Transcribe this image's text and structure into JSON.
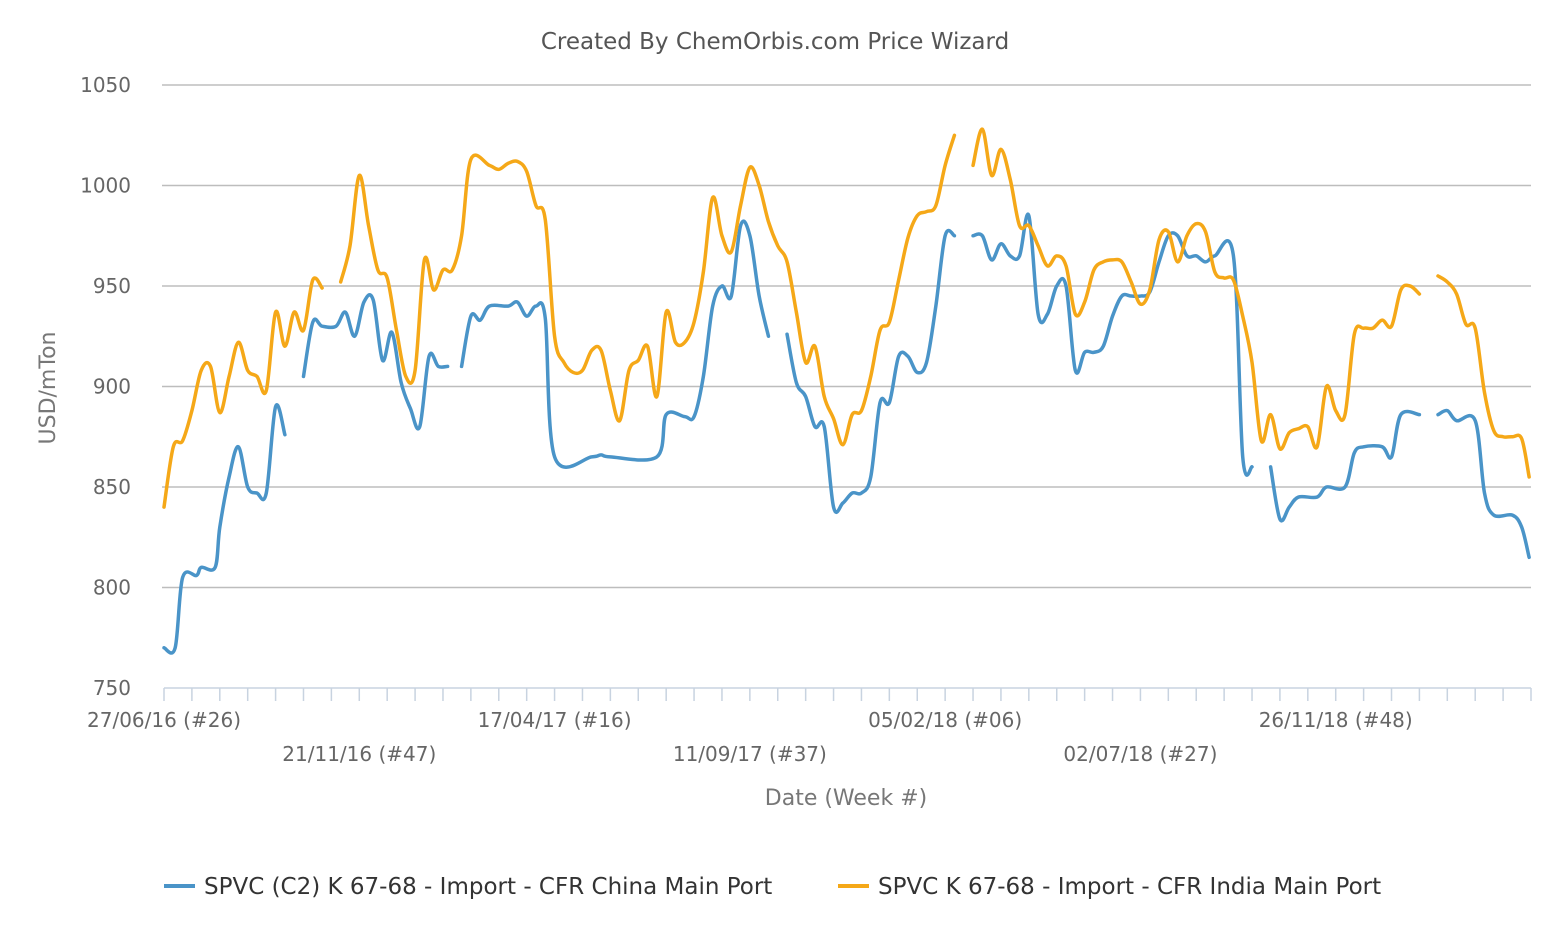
{
  "chart_data": {
    "type": "line",
    "title": "Created By ChemOrbis.com Price Wizard",
    "xlabel": "Date (Week #)",
    "ylabel": "USD/mTon",
    "ylim": [
      750,
      1050
    ],
    "yticks": [
      750,
      800,
      850,
      900,
      950,
      1000,
      1050
    ],
    "x_tick_labels": [
      "27/06/16 (#26)",
      "21/11/16 (#47)",
      "17/04/17 (#16)",
      "11/09/17 (#37)",
      "05/02/18 (#06)",
      "02/07/18 (#27)",
      "26/11/18 (#48)"
    ],
    "x_unit": "weeks since 27/06/16",
    "x_tick_weeks": [
      0,
      21,
      42,
      63,
      84,
      105,
      126
    ],
    "x_range_weeks": [
      0,
      147
    ],
    "grid": true,
    "legend_position": "bottom",
    "series": [
      {
        "name": "SPVC (C2) K 67-68 - Import - CFR China Main Port",
        "color": "#4a94c8",
        "segments": [
          [
            [
              0,
              770
            ],
            [
              1.2,
              770
            ],
            [
              2,
              805
            ],
            [
              3.5,
              806
            ],
            [
              4,
              810
            ],
            [
              5.5,
              810
            ],
            [
              6,
              830
            ],
            [
              7,
              855
            ],
            [
              8,
              870
            ],
            [
              9,
              850
            ],
            [
              10,
              847
            ],
            [
              11,
              847
            ],
            [
              12,
              890
            ],
            [
              13,
              876
            ]
          ],
          [
            [
              15,
              905
            ],
            [
              16,
              932
            ],
            [
              17,
              930
            ],
            [
              18.5,
              930
            ],
            [
              19.5,
              937
            ],
            [
              20.5,
              925
            ],
            [
              21.5,
              942
            ],
            [
              22.5,
              943
            ],
            [
              23.5,
              913
            ],
            [
              24.5,
              927
            ],
            [
              25.5,
              902
            ],
            [
              26.5,
              889
            ],
            [
              27.5,
              880
            ],
            [
              28.5,
              915
            ],
            [
              29.5,
              910
            ],
            [
              30.5,
              910
            ]
          ],
          [
            [
              32,
              910
            ],
            [
              33,
              935
            ],
            [
              34,
              933
            ],
            [
              35,
              940
            ],
            [
              37,
              940
            ],
            [
              38,
              942
            ],
            [
              39,
              935
            ],
            [
              40,
              940
            ],
            [
              41,
              934
            ],
            [
              42,
              865
            ],
            [
              46,
              865
            ],
            [
              47,
              866
            ],
            [
              48,
              865
            ],
            [
              53,
              865
            ],
            [
              54,
              886
            ],
            [
              56,
              885
            ],
            [
              57,
              885
            ],
            [
              58,
              905
            ],
            [
              59,
              940
            ],
            [
              60,
              950
            ],
            [
              61,
              945
            ],
            [
              62,
              980
            ],
            [
              63,
              975
            ],
            [
              64,
              945
            ],
            [
              65,
              925
            ]
          ],
          [
            [
              67,
              926
            ],
            [
              68,
              902
            ],
            [
              69,
              895
            ],
            [
              70,
              880
            ],
            [
              71,
              880
            ],
            [
              72,
              840
            ],
            [
              73,
              842
            ],
            [
              74,
              847
            ],
            [
              75,
              847
            ],
            [
              76,
              855
            ],
            [
              77,
              892
            ],
            [
              78,
              892
            ],
            [
              79,
              915
            ],
            [
              80,
              915
            ],
            [
              81,
              907
            ],
            [
              82,
              912
            ],
            [
              83,
              940
            ],
            [
              84,
              975
            ],
            [
              85,
              975
            ]
          ],
          [
            [
              87,
              975
            ],
            [
              88,
              975
            ],
            [
              89,
              963
            ],
            [
              90,
              971
            ],
            [
              91,
              965
            ],
            [
              92,
              965
            ],
            [
              93,
              985
            ],
            [
              94,
              936
            ],
            [
              95,
              936
            ],
            [
              96,
              950
            ],
            [
              97,
              950
            ],
            [
              98,
              908
            ],
            [
              99,
              917
            ],
            [
              100,
              917
            ],
            [
              101,
              920
            ],
            [
              102,
              935
            ],
            [
              103,
              945
            ],
            [
              104,
              945
            ],
            [
              105,
              945
            ],
            [
              106,
              947
            ],
            [
              107,
              962
            ],
            [
              108,
              975
            ],
            [
              109,
              975
            ],
            [
              110,
              965
            ],
            [
              111,
              965
            ],
            [
              112,
              962
            ],
            [
              113,
              965
            ],
            [
              115,
              965
            ],
            [
              116,
              865
            ],
            [
              117,
              860
            ]
          ],
          [
            [
              119,
              860
            ],
            [
              120,
              834
            ],
            [
              121,
              840
            ],
            [
              122,
              845
            ],
            [
              124,
              845
            ],
            [
              125,
              850
            ],
            [
              127,
              850
            ],
            [
              128,
              867
            ],
            [
              129,
              870
            ],
            [
              131,
              870
            ],
            [
              132,
              865
            ],
            [
              133,
              886
            ],
            [
              135,
              886
            ]
          ],
          [
            [
              137,
              886
            ],
            [
              138,
              888
            ],
            [
              139,
              883
            ],
            [
              141,
              883
            ],
            [
              142,
              847
            ],
            [
              143,
              836
            ],
            [
              145,
              836
            ],
            [
              146,
              830
            ],
            [
              146.8,
              815
            ]
          ]
        ]
      },
      {
        "name": "SPVC K 67-68 - Import - CFR India Main Port",
        "color": "#f5a818",
        "segments": [
          [
            [
              0,
              840
            ],
            [
              1,
              870
            ],
            [
              2,
              873
            ],
            [
              3,
              888
            ],
            [
              4,
              908
            ],
            [
              5,
              910
            ],
            [
              6,
              887
            ],
            [
              7,
              905
            ],
            [
              8,
              922
            ],
            [
              9,
              908
            ],
            [
              10,
              905
            ],
            [
              11,
              898
            ],
            [
              12,
              937
            ],
            [
              13,
              920
            ],
            [
              14,
              937
            ],
            [
              15,
              928
            ],
            [
              16,
              953
            ],
            [
              17,
              949
            ]
          ],
          [
            [
              19,
              952
            ],
            [
              20,
              970
            ],
            [
              21,
              1005
            ],
            [
              22,
              980
            ],
            [
              23,
              958
            ],
            [
              24,
              954
            ],
            [
              25,
              928
            ],
            [
              26,
              905
            ],
            [
              27,
              908
            ],
            [
              28,
              963
            ],
            [
              29,
              948
            ],
            [
              30,
              958
            ],
            [
              31,
              958
            ],
            [
              32,
              975
            ],
            [
              33,
              1013
            ],
            [
              35,
              1010
            ],
            [
              36,
              1008
            ],
            [
              37,
              1011
            ],
            [
              38,
              1012
            ],
            [
              39,
              1007
            ],
            [
              40,
              990
            ],
            [
              41,
              983
            ],
            [
              42,
              925
            ],
            [
              43,
              912
            ],
            [
              44,
              907
            ],
            [
              45,
              908
            ],
            [
              46,
              918
            ],
            [
              47,
              918
            ],
            [
              48,
              898
            ],
            [
              49,
              883
            ],
            [
              50,
              908
            ],
            [
              51,
              913
            ],
            [
              52,
              920
            ],
            [
              53,
              895
            ],
            [
              54,
              937
            ],
            [
              55,
              922
            ],
            [
              56,
              922
            ],
            [
              57,
              932
            ],
            [
              58,
              957
            ],
            [
              59,
              994
            ],
            [
              60,
              975
            ],
            [
              61,
              967
            ],
            [
              62,
              990
            ],
            [
              63,
              1009
            ],
            [
              64,
              1000
            ],
            [
              65,
              982
            ],
            [
              66,
              970
            ],
            [
              67,
              962
            ],
            [
              68,
              937
            ],
            [
              69,
              912
            ],
            [
              70,
              920
            ],
            [
              71,
              895
            ],
            [
              72,
              884
            ],
            [
              73,
              871
            ],
            [
              74,
              886
            ],
            [
              75,
              888
            ],
            [
              76,
              905
            ],
            [
              77,
              928
            ],
            [
              78,
              932
            ],
            [
              79,
              953
            ],
            [
              80,
              974
            ],
            [
              81,
              985
            ],
            [
              82,
              987
            ],
            [
              83,
              990
            ],
            [
              84,
              1010
            ],
            [
              85,
              1025
            ]
          ],
          [
            [
              87,
              1010
            ],
            [
              88,
              1028
            ],
            [
              89,
              1005
            ],
            [
              90,
              1018
            ],
            [
              91,
              1003
            ],
            [
              92,
              980
            ],
            [
              93,
              980
            ],
            [
              94,
              970
            ],
            [
              95,
              960
            ],
            [
              96,
              965
            ],
            [
              97,
              960
            ],
            [
              98,
              936
            ],
            [
              99,
              942
            ],
            [
              100,
              958
            ],
            [
              101,
              962
            ],
            [
              102,
              963
            ],
            [
              103,
              962
            ],
            [
              104,
              952
            ],
            [
              105,
              941
            ],
            [
              106,
              948
            ],
            [
              107,
              973
            ],
            [
              108,
              977
            ],
            [
              109,
              962
            ],
            [
              110,
              975
            ],
            [
              111,
              981
            ],
            [
              112,
              977
            ],
            [
              113,
              957
            ],
            [
              114,
              954
            ],
            [
              115,
              953
            ],
            [
              116,
              935
            ],
            [
              117,
              912
            ],
            [
              118,
              873
            ],
            [
              119,
              886
            ],
            [
              120,
              869
            ],
            [
              121,
              877
            ],
            [
              122,
              879
            ],
            [
              123,
              880
            ],
            [
              124,
              870
            ],
            [
              125,
              900
            ],
            [
              126,
              888
            ],
            [
              127,
              886
            ],
            [
              128,
              926
            ],
            [
              129,
              929
            ],
            [
              130,
              929
            ],
            [
              131,
              933
            ],
            [
              132,
              930
            ],
            [
              133,
              948
            ],
            [
              134,
              950
            ],
            [
              135,
              946
            ]
          ],
          [
            [
              137,
              955
            ],
            [
              138,
              952
            ],
            [
              139,
              946
            ],
            [
              140,
              931
            ],
            [
              141,
              929
            ],
            [
              142,
              897
            ],
            [
              143,
              878
            ],
            [
              144,
              875
            ],
            [
              145,
              875
            ],
            [
              146,
              874
            ],
            [
              146.8,
              855
            ]
          ]
        ]
      }
    ]
  }
}
